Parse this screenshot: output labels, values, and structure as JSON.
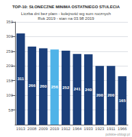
{
  "chart_data": {
    "type": "bar",
    "title": "TOP-10: SŁONECZNE MINIMA OSTATNIEGO STULECIA",
    "subtitle": "Liczba dni bez plam - kolejność wg sum rocznych\nRok 2019 - stan na 03.98 2019",
    "categories": [
      "1913",
      "2008",
      "2009",
      "2019",
      "1912",
      "1964",
      "1933",
      "1923",
      "1911",
      "1966"
    ],
    "values": [
      311,
      266,
      260,
      256,
      252,
      241,
      240,
      200,
      200,
      165
    ],
    "colors": [
      "#1b3f7a",
      "#1b3f7a",
      "#1b3f7a",
      "#4fb3e8",
      "#1b3f7a",
      "#1b3f7a",
      "#1b3f7a",
      "#1b3f7a",
      "#1b3f7a",
      "#1b3f7a"
    ],
    "ylim": [
      0,
      350
    ],
    "yticks": [
      50,
      100,
      150,
      200,
      250,
      300,
      350
    ],
    "grid": true,
    "data_labels": true,
    "annotations": [
      "polskie-oblogi.pl"
    ]
  }
}
